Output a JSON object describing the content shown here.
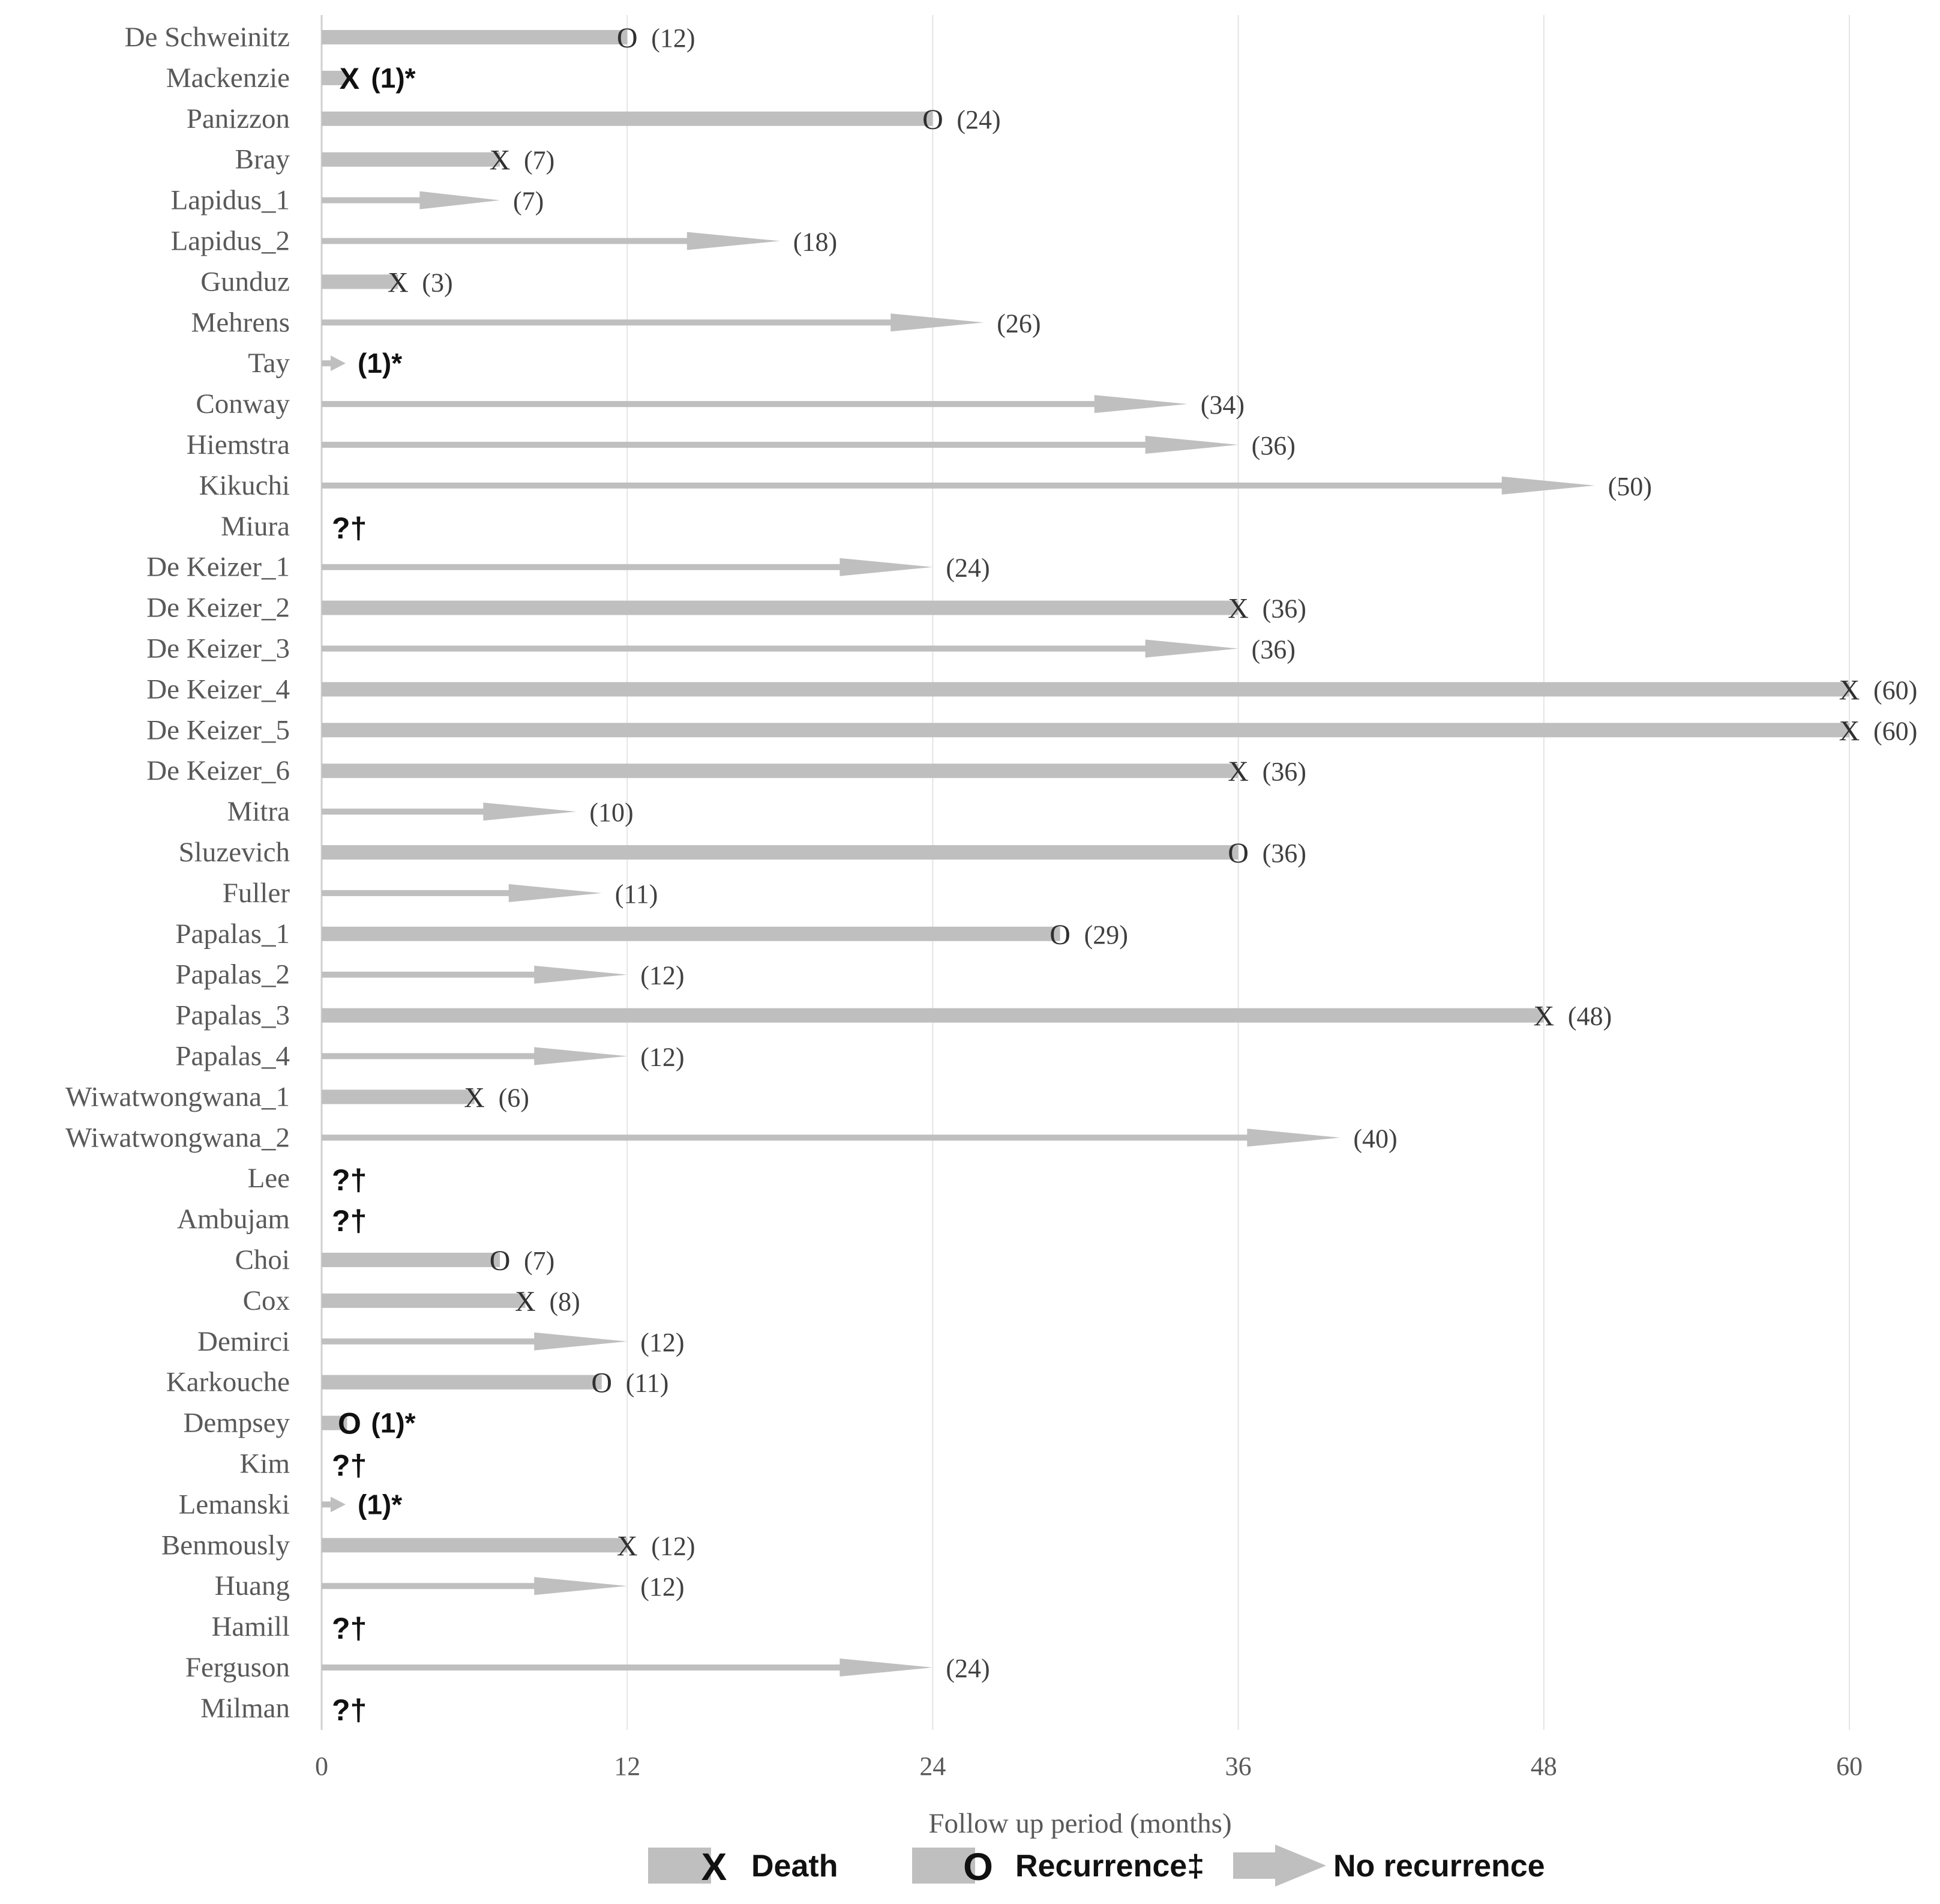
{
  "chart_data": {
    "type": "bar",
    "orientation": "horizontal",
    "xlabel": "Follow up period (months)",
    "xlim": [
      0,
      60
    ],
    "xticks": [
      0,
      12,
      24,
      36,
      48,
      60
    ],
    "grid": "vertical",
    "legend_position": "bottom",
    "legend": [
      {
        "key": "death",
        "label": "Death",
        "symbol": "X"
      },
      {
        "key": "recurrence",
        "label": "Recurrence‡",
        "symbol": "O"
      },
      {
        "key": "no_recurrence",
        "label": "No recurrence",
        "symbol": ""
      }
    ],
    "rows": [
      {
        "name": "De Schweinitz",
        "outcome": "recurrence",
        "months": 12,
        "label": "(12)"
      },
      {
        "name": "Mackenzie",
        "outcome": "death",
        "months": 1,
        "label": "(1)*"
      },
      {
        "name": "Panizzon",
        "outcome": "recurrence",
        "months": 24,
        "label": "(24)"
      },
      {
        "name": "Bray",
        "outcome": "death",
        "months": 7,
        "label": "(7)"
      },
      {
        "name": "Lapidus_1",
        "outcome": "no_recurrence",
        "months": 7,
        "label": "(7)"
      },
      {
        "name": "Lapidus_2",
        "outcome": "no_recurrence",
        "months": 18,
        "label": "(18)"
      },
      {
        "name": "Gunduz",
        "outcome": "death",
        "months": 3,
        "label": "(3)"
      },
      {
        "name": "Mehrens",
        "outcome": "no_recurrence",
        "months": 26,
        "label": "(26)"
      },
      {
        "name": "Tay",
        "outcome": "no_recurrence",
        "months": 1,
        "label": "(1)*"
      },
      {
        "name": "Conway",
        "outcome": "no_recurrence",
        "months": 34,
        "label": "(34)"
      },
      {
        "name": "Hiemstra",
        "outcome": "no_recurrence",
        "months": 36,
        "label": "(36)"
      },
      {
        "name": "Kikuchi",
        "outcome": "no_recurrence",
        "months": 50,
        "label": "(50)"
      },
      {
        "name": "Miura",
        "outcome": "unknown",
        "months": null,
        "label": "?†"
      },
      {
        "name": "De Keizer_1",
        "outcome": "no_recurrence",
        "months": 24,
        "label": "(24)"
      },
      {
        "name": "De Keizer_2",
        "outcome": "death",
        "months": 36,
        "label": "(36)"
      },
      {
        "name": "De Keizer_3",
        "outcome": "no_recurrence",
        "months": 36,
        "label": "(36)"
      },
      {
        "name": "De Keizer_4",
        "outcome": "death",
        "months": 60,
        "label": "(60)"
      },
      {
        "name": "De Keizer_5",
        "outcome": "death",
        "months": 60,
        "label": "(60)"
      },
      {
        "name": "De Keizer_6",
        "outcome": "death",
        "months": 36,
        "label": "(36)"
      },
      {
        "name": "Mitra",
        "outcome": "no_recurrence",
        "months": 10,
        "label": "(10)"
      },
      {
        "name": "Sluzevich",
        "outcome": "recurrence",
        "months": 36,
        "label": "(36)"
      },
      {
        "name": "Fuller",
        "outcome": "no_recurrence",
        "months": 11,
        "label": "(11)"
      },
      {
        "name": "Papalas_1",
        "outcome": "recurrence",
        "months": 29,
        "label": "(29)"
      },
      {
        "name": "Papalas_2",
        "outcome": "no_recurrence",
        "months": 12,
        "label": "(12)"
      },
      {
        "name": "Papalas_3",
        "outcome": "death",
        "months": 48,
        "label": "(48)"
      },
      {
        "name": "Papalas_4",
        "outcome": "no_recurrence",
        "months": 12,
        "label": "(12)"
      },
      {
        "name": "Wiwatwongwana_1",
        "outcome": "death",
        "months": 6,
        "label": "(6)"
      },
      {
        "name": "Wiwatwongwana_2",
        "outcome": "no_recurrence",
        "months": 40,
        "label": "(40)"
      },
      {
        "name": "Lee",
        "outcome": "unknown",
        "months": null,
        "label": "?†"
      },
      {
        "name": "Ambujam",
        "outcome": "unknown",
        "months": null,
        "label": "?†"
      },
      {
        "name": "Choi",
        "outcome": "recurrence",
        "months": 7,
        "label": "(7)"
      },
      {
        "name": "Cox",
        "outcome": "death",
        "months": 8,
        "label": "(8)"
      },
      {
        "name": "Demirci",
        "outcome": "no_recurrence",
        "months": 12,
        "label": "(12)"
      },
      {
        "name": "Karkouche",
        "outcome": "recurrence",
        "months": 11,
        "label": "(11)"
      },
      {
        "name": "Dempsey",
        "outcome": "recurrence",
        "months": 1,
        "label": "(1)*"
      },
      {
        "name": "Kim",
        "outcome": "unknown",
        "months": null,
        "label": "?†"
      },
      {
        "name": "Lemanski",
        "outcome": "no_recurrence",
        "months": 1,
        "label": "(1)*"
      },
      {
        "name": "Benmously",
        "outcome": "death",
        "months": 12,
        "label": "(12)"
      },
      {
        "name": "Huang",
        "outcome": "no_recurrence",
        "months": 12,
        "label": "(12)"
      },
      {
        "name": "Hamill",
        "outcome": "unknown",
        "months": null,
        "label": "?†"
      },
      {
        "name": "Ferguson",
        "outcome": "no_recurrence",
        "months": 24,
        "label": "(24)"
      },
      {
        "name": "Milman",
        "outcome": "unknown",
        "months": null,
        "label": "?†"
      }
    ],
    "colors": {
      "bar": "#bfbfbf",
      "grid": "#e4e4e4",
      "axis": "#d0d0d0"
    }
  }
}
